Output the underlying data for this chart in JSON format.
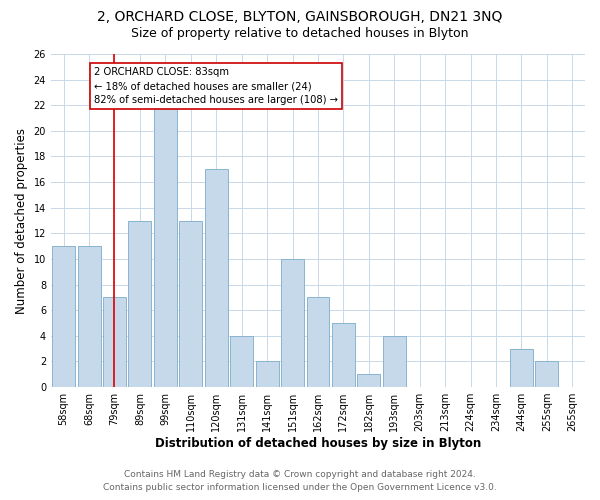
{
  "title": "2, ORCHARD CLOSE, BLYTON, GAINSBOROUGH, DN21 3NQ",
  "subtitle": "Size of property relative to detached houses in Blyton",
  "xlabel": "Distribution of detached houses by size in Blyton",
  "ylabel": "Number of detached properties",
  "bar_labels": [
    "58sqm",
    "68sqm",
    "79sqm",
    "89sqm",
    "99sqm",
    "110sqm",
    "120sqm",
    "131sqm",
    "141sqm",
    "151sqm",
    "162sqm",
    "172sqm",
    "182sqm",
    "193sqm",
    "203sqm",
    "213sqm",
    "224sqm",
    "234sqm",
    "244sqm",
    "255sqm",
    "265sqm"
  ],
  "bar_values": [
    11,
    11,
    7,
    13,
    22,
    13,
    17,
    4,
    2,
    10,
    7,
    5,
    1,
    4,
    0,
    0,
    0,
    0,
    3,
    2,
    0
  ],
  "bar_color": "#c5d9ea",
  "bar_edge_color": "#8ab4cf",
  "vline_x": 2,
  "vline_color": "#dd0000",
  "annotation_text": "2 ORCHARD CLOSE: 83sqm\n← 18% of detached houses are smaller (24)\n82% of semi-detached houses are larger (108) →",
  "annotation_box_color": "#ffffff",
  "annotation_box_edge": "#cc0000",
  "ylim": [
    0,
    26
  ],
  "yticks": [
    0,
    2,
    4,
    6,
    8,
    10,
    12,
    14,
    16,
    18,
    20,
    22,
    24,
    26
  ],
  "footer_line1": "Contains HM Land Registry data © Crown copyright and database right 2024.",
  "footer_line2": "Contains public sector information licensed under the Open Government Licence v3.0.",
  "bg_color": "#ffffff",
  "grid_color": "#c8d8e8",
  "title_fontsize": 10,
  "subtitle_fontsize": 9,
  "tick_fontsize": 7,
  "label_fontsize": 8.5,
  "footer_fontsize": 6.5
}
